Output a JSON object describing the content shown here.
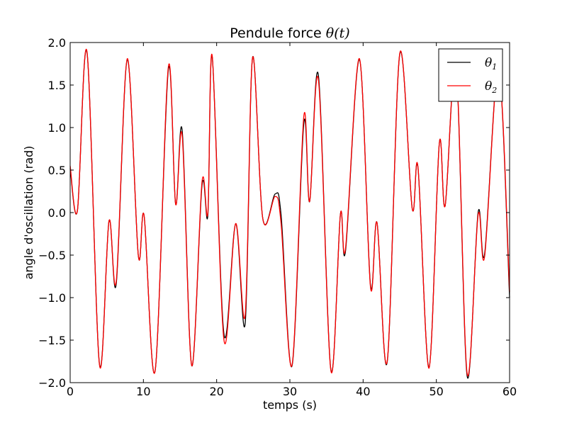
{
  "chart_data": {
    "type": "line",
    "title": "Pendule force θ(t)",
    "title_plain": "Pendule force ",
    "title_math": "θ(t)",
    "xlabel": "temps (s)",
    "ylabel": "angle d'oscillation (rad)",
    "xlim": [
      0,
      60
    ],
    "ylim": [
      -2.0,
      2.0
    ],
    "grid": false,
    "legend_position": "top-right",
    "x_ticks": [
      0,
      10,
      20,
      30,
      40,
      50,
      60
    ],
    "y_ticks": [
      2.0,
      1.5,
      1.0,
      0.5,
      0.0,
      -0.5,
      -1.0,
      -1.5,
      -2.0
    ],
    "x_tick_labels": [
      "0",
      "10",
      "20",
      "30",
      "40",
      "50",
      "60"
    ],
    "y_tick_labels": [
      "2.0",
      "1.5",
      "1.0",
      "0.5",
      "0.0",
      "−0.5",
      "−1.0",
      "−1.5",
      "−2.0"
    ],
    "x": [
      0,
      1,
      2.3,
      4,
      5.3,
      6.3,
      7.8,
      9.3,
      10.1,
      11.6,
      13.4,
      14.4,
      15.3,
      16.6,
      18,
      18.8,
      19.4,
      21,
      22.6,
      23.9,
      24.9,
      26.3,
      28,
      28.8,
      30.3,
      31.9,
      32.7,
      33.9,
      35.6,
      36.9,
      37.6,
      39.5,
      41,
      41.9,
      43.3,
      45,
      46.7,
      47.5,
      49,
      50.4,
      51.2,
      52.7,
      54.2,
      55.7,
      56.6,
      58.5,
      60
    ],
    "series": [
      {
        "name": "θ1",
        "color": "#000000",
        "values": [
          0.52,
          0.03,
          1.88,
          -1.78,
          -0.1,
          -0.83,
          1.8,
          -0.5,
          -0.04,
          -1.86,
          1.68,
          0.1,
          0.96,
          -1.8,
          0.32,
          -0.03,
          1.83,
          -1.43,
          -0.13,
          -1.3,
          1.82,
          -0.07,
          0.22,
          -0.03,
          -1.8,
          1.05,
          0.13,
          1.61,
          -1.85,
          -0.02,
          -0.45,
          1.8,
          -0.85,
          -0.12,
          -1.75,
          1.86,
          0.05,
          0.52,
          -1.82,
          0.81,
          0.08,
          1.7,
          -1.92,
          0.0,
          -0.48,
          1.7,
          -1.0
        ]
      },
      {
        "name": "θ2",
        "color": "#ff0000",
        "values": [
          0.55,
          0.03,
          1.89,
          -1.79,
          -0.1,
          -0.8,
          1.81,
          -0.5,
          -0.04,
          -1.86,
          1.71,
          0.1,
          0.9,
          -1.8,
          0.36,
          0.0,
          1.84,
          -1.5,
          -0.13,
          -1.2,
          1.82,
          -0.07,
          0.19,
          -0.13,
          -1.79,
          1.13,
          0.13,
          1.56,
          -1.86,
          -0.02,
          -0.42,
          1.81,
          -0.87,
          -0.12,
          -1.74,
          1.87,
          0.05,
          0.53,
          -1.83,
          0.81,
          0.08,
          1.72,
          -1.89,
          -0.03,
          -0.51,
          1.7,
          -0.93
        ]
      }
    ]
  }
}
